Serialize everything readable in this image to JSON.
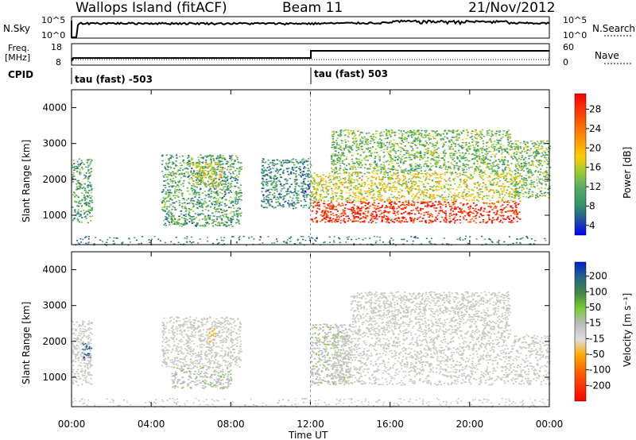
{
  "header": {
    "site": "Wallops Island (fitACF)",
    "beam": "Beam 11",
    "date": "21/Nov/2012"
  },
  "panels": {
    "nsky_label": "N.Sky",
    "nsearch_label": "N.Search",
    "nsky_ticks": [
      "10^5",
      "10^0"
    ],
    "nsearch_ticks": [
      "10^5",
      "10^0"
    ],
    "freq_label": "Freq.",
    "freq_unit": "[MHz]",
    "freq_ticks": [
      "18",
      "8"
    ],
    "nave_label": "Nave",
    "nave_ticks": [
      "60",
      "0"
    ],
    "cpid_label": "CPID",
    "cpid_modes": [
      "tau (fast) -503",
      "tau (fast) 503"
    ]
  },
  "axes": {
    "xlabel": "Time UT",
    "xticks": [
      "00:00",
      "04:00",
      "08:00",
      "12:00",
      "16:00",
      "20:00",
      "00:00"
    ],
    "ylabel": "Slant Range [km]",
    "yticks": [
      "1000",
      "2000",
      "3000",
      "4000"
    ]
  },
  "colorbars": {
    "power": {
      "label": "Power [dB]",
      "ticks": [
        "28",
        "24",
        "20",
        "16",
        "12",
        "8",
        "4"
      ],
      "colors": [
        "#ff0000",
        "#ff3300",
        "#ff6600",
        "#ff9900",
        "#ffcc00",
        "#99cc33",
        "#55aa66",
        "#339966",
        "#225599",
        "#0000ff"
      ]
    },
    "velocity": {
      "label": "Velocity [m s⁻¹]",
      "ticks": [
        "200",
        "100",
        "50",
        "15",
        "-15",
        "-50",
        "-100",
        "-200"
      ],
      "colors": [
        "#0022cc",
        "#226688",
        "#448844",
        "#77cc33",
        "#bbbbbb",
        "#dddddd",
        "#ffaa00",
        "#ff6600",
        "#ff3300",
        "#ff0000"
      ]
    }
  },
  "chart_data": [
    {
      "type": "heatmap",
      "title": "Power",
      "xlabel": "Time UT",
      "ylabel": "Slant Range [km]",
      "xlim": [
        0,
        24
      ],
      "ylim": [
        180,
        4500
      ],
      "cbar_label": "Power [dB]",
      "cbar_range": [
        0,
        32
      ],
      "regions": [
        {
          "t": [
            0.0,
            1.0
          ],
          "r": [
            800,
            2600
          ],
          "value": 10
        },
        {
          "t": [
            4.5,
            8.5
          ],
          "r": [
            700,
            2700
          ],
          "value": 10
        },
        {
          "t": [
            6.0,
            7.5
          ],
          "r": [
            1800,
            2500
          ],
          "value": 16
        },
        {
          "t": [
            9.5,
            12.0
          ],
          "r": [
            1200,
            2600
          ],
          "value": 8
        },
        {
          "t": [
            12.0,
            22.5
          ],
          "r": [
            800,
            1400
          ],
          "value": 28
        },
        {
          "t": [
            12.0,
            22.5
          ],
          "r": [
            1400,
            2200
          ],
          "value": 16
        },
        {
          "t": [
            13.0,
            22.0
          ],
          "r": [
            2200,
            3400
          ],
          "value": 12
        },
        {
          "t": [
            22.0,
            24.0
          ],
          "r": [
            1500,
            3100
          ],
          "value": 12
        }
      ]
    },
    {
      "type": "heatmap",
      "title": "Velocity",
      "xlabel": "Time UT",
      "ylabel": "Slant Range [km]",
      "xlim": [
        0,
        24
      ],
      "ylim": [
        180,
        4500
      ],
      "cbar_label": "Velocity [m s⁻¹]",
      "cbar_range": [
        -250,
        250
      ],
      "regions": [
        {
          "t": [
            0.5,
            1.0
          ],
          "r": [
            1500,
            2000
          ],
          "value": 200
        },
        {
          "t": [
            0.0,
            1.0
          ],
          "r": [
            800,
            2600
          ],
          "value": 0
        },
        {
          "t": [
            5.0,
            8.0
          ],
          "r": [
            700,
            1300
          ],
          "value": 40
        },
        {
          "t": [
            4.5,
            8.5
          ],
          "r": [
            1300,
            2700
          ],
          "value": 0
        },
        {
          "t": [
            6.8,
            7.2
          ],
          "r": [
            2000,
            2400
          ],
          "value": -50
        },
        {
          "t": [
            12.0,
            14.0
          ],
          "r": [
            800,
            2500
          ],
          "value": 40
        },
        {
          "t": [
            13.0,
            24.0
          ],
          "r": [
            800,
            2200
          ],
          "value": 0
        },
        {
          "t": [
            14.0,
            22.0
          ],
          "r": [
            2200,
            3400
          ],
          "value": 0
        }
      ]
    },
    {
      "type": "line",
      "title": "N.Sky",
      "x": [
        0,
        0.3,
        0.35,
        12,
        16,
        24
      ],
      "y": [
        1,
        1,
        3000,
        2500,
        4000,
        3000
      ]
    },
    {
      "type": "line",
      "title": "Freq.",
      "ylabel": "[MHz]",
      "x": [
        0,
        0.2,
        12,
        12.01,
        24
      ],
      "y": [
        9,
        10.5,
        10.5,
        15.5,
        15.5
      ]
    },
    {
      "type": "line",
      "title": "CPID",
      "x": [
        0,
        12,
        12.01,
        24
      ],
      "y": [
        -503,
        -503,
        503,
        503
      ]
    }
  ]
}
